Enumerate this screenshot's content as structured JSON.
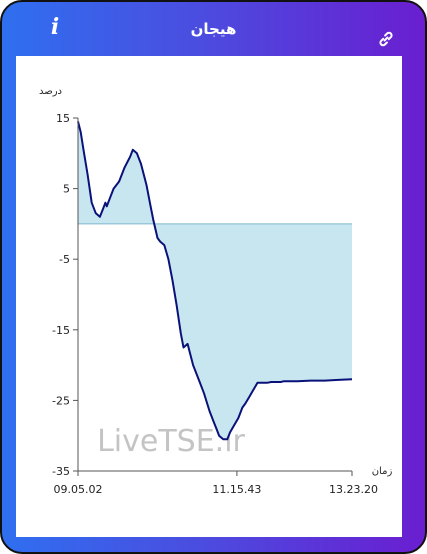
{
  "header": {
    "title": "هیجان",
    "info_icon": "info-icon",
    "link_icon": "link-icon"
  },
  "colors": {
    "line": "#0a127a",
    "fill": "#c8e6f0",
    "axis": "#555555"
  },
  "watermark": "LiveTSE.ir",
  "chart_data": {
    "type": "area",
    "title": "هیجان",
    "ylabel": "درصد",
    "xlabel": "زمان",
    "ylim": [
      -35,
      15
    ],
    "yticks": [
      15,
      5,
      -5,
      -15,
      -25,
      -35
    ],
    "baseline": 0,
    "xticks": [
      {
        "x": 0,
        "label": "09.05.02"
      },
      {
        "x": 0.58,
        "label": "11.15.43"
      },
      {
        "x": 1.0,
        "label": "13.23.20"
      }
    ],
    "xlim": [
      0,
      1
    ],
    "grid": false,
    "series": [
      {
        "x": [
          0,
          0.01,
          0.02,
          0.035,
          0.05,
          0.065,
          0.08,
          0.09,
          0.1,
          0.105,
          0.115,
          0.13,
          0.15,
          0.17,
          0.19,
          0.2,
          0.215,
          0.23,
          0.25,
          0.265,
          0.275,
          0.29,
          0.3,
          0.315,
          0.33,
          0.345,
          0.36,
          0.375,
          0.385,
          0.4,
          0.42,
          0.44,
          0.46,
          0.48,
          0.495,
          0.505,
          0.515,
          0.53,
          0.545,
          0.555,
          0.57,
          0.585,
          0.6,
          0.61,
          0.625,
          0.64,
          0.655,
          0.67,
          0.68,
          0.69,
          0.705,
          0.72,
          0.74,
          0.75,
          0.76,
          0.8,
          0.85,
          0.9,
          0.95,
          1.0
        ],
        "y": [
          14.5,
          13.0,
          10.5,
          7.0,
          3.0,
          1.5,
          1.0,
          2.0,
          3.0,
          2.5,
          3.5,
          5.0,
          6.0,
          8.0,
          9.5,
          10.5,
          10.0,
          8.5,
          5.5,
          2.5,
          0.5,
          -2.0,
          -2.5,
          -3.0,
          -5.0,
          -8.0,
          -11.5,
          -15.5,
          -17.5,
          -17.0,
          -20.0,
          -22.0,
          -24.0,
          -26.5,
          -28.0,
          -29.0,
          -30.0,
          -30.5,
          -30.5,
          -29.5,
          -28.5,
          -27.5,
          -26.0,
          -25.5,
          -24.5,
          -23.5,
          -22.5,
          -22.5,
          -22.5,
          -22.5,
          -22.4,
          -22.4,
          -22.4,
          -22.3,
          -22.3,
          -22.3,
          -22.2,
          -22.2,
          -22.1,
          -22.0
        ]
      }
    ]
  }
}
